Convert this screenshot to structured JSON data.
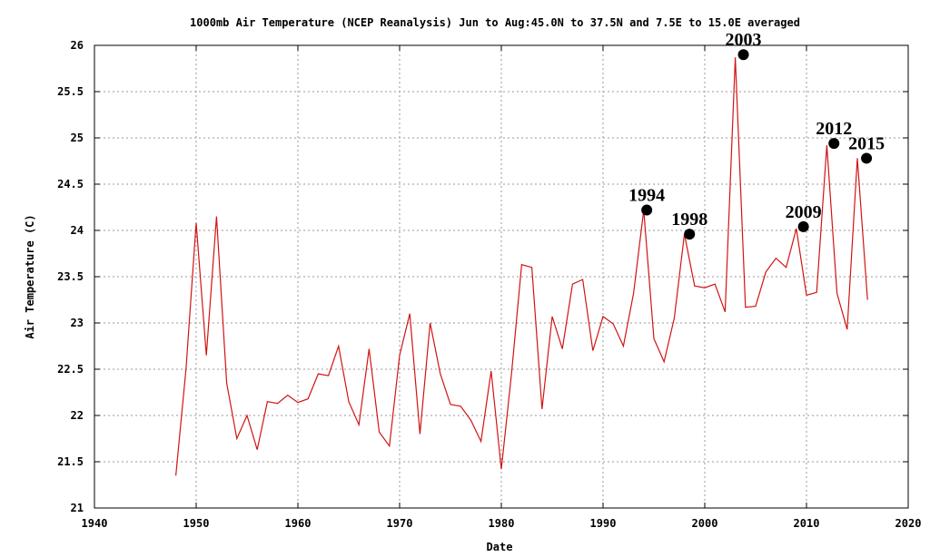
{
  "chart_data": {
    "type": "line",
    "title": "1000mb Air Temperature (NCEP Reanalysis) Jun to Aug:45.0N to 37.5N and 7.5E to 15.0E averaged",
    "xlabel": "Date",
    "ylabel": "Air Temperature (C)",
    "xlim": [
      1940,
      2020
    ],
    "ylim": [
      21,
      26
    ],
    "x_ticks": [
      "1940",
      "1950",
      "1960",
      "1970",
      "1980",
      "1990",
      "2000",
      "2010",
      "2020"
    ],
    "y_ticks": [
      "21",
      "21.5",
      "22",
      "22.5",
      "23",
      "23.5",
      "24",
      "24.5",
      "25",
      "25.5",
      "26"
    ],
    "grid": true,
    "series": [
      {
        "color": "#d11414",
        "x": [
          1948,
          1949,
          1950,
          1951,
          1952,
          1953,
          1954,
          1955,
          1956,
          1957,
          1958,
          1959,
          1960,
          1961,
          1962,
          1963,
          1964,
          1965,
          1966,
          1967,
          1968,
          1969,
          1970,
          1971,
          1972,
          1973,
          1974,
          1975,
          1976,
          1977,
          1978,
          1979,
          1980,
          1981,
          1982,
          1983,
          1984,
          1985,
          1986,
          1987,
          1988,
          1989,
          1990,
          1991,
          1992,
          1993,
          1994,
          1995,
          1996,
          1997,
          1998,
          1999,
          2000,
          2001,
          2002,
          2003,
          2004,
          2005,
          2006,
          2007,
          2008,
          2009,
          2010,
          2011,
          2012,
          2013,
          2014,
          2015,
          2016
        ],
        "values": [
          21.35,
          22.5,
          24.08,
          22.65,
          24.15,
          22.35,
          21.75,
          22.0,
          21.63,
          22.15,
          22.13,
          22.22,
          22.14,
          22.18,
          22.45,
          22.43,
          22.75,
          22.15,
          21.9,
          22.72,
          21.82,
          21.67,
          22.65,
          23.1,
          21.8,
          23.0,
          22.45,
          22.12,
          22.1,
          21.95,
          21.72,
          22.48,
          21.42,
          22.45,
          23.63,
          23.6,
          22.07,
          23.07,
          22.72,
          23.42,
          23.47,
          22.7,
          23.07,
          22.99,
          22.75,
          23.32,
          24.22,
          22.83,
          22.58,
          23.05,
          23.96,
          23.4,
          23.38,
          23.42,
          23.12,
          25.87,
          23.17,
          23.18,
          23.55,
          23.7,
          23.6,
          24.02,
          23.3,
          23.33,
          24.92,
          23.32,
          22.93,
          24.78,
          23.25
        ]
      }
    ],
    "annotations": [
      {
        "label": "1994",
        "x": 1994.3,
        "y": 24.22
      },
      {
        "label": "1998",
        "x": 1998.5,
        "y": 23.96
      },
      {
        "label": "2003",
        "x": 2003.8,
        "y": 25.9
      },
      {
        "label": "2009",
        "x": 2009.7,
        "y": 24.04
      },
      {
        "label": "2012",
        "x": 2012.7,
        "y": 24.94
      },
      {
        "label": "2015",
        "x": 2015.9,
        "y": 24.78
      }
    ]
  }
}
